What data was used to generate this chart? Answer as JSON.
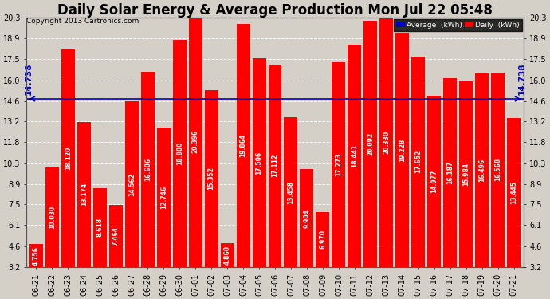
{
  "title": "Daily Solar Energy & Average Production Mon Jul 22 05:48",
  "copyright": "Copyright 2013 Cartronics.com",
  "categories": [
    "06-21",
    "06-22",
    "06-23",
    "06-24",
    "06-25",
    "06-26",
    "06-27",
    "06-28",
    "06-29",
    "06-30",
    "07-01",
    "07-02",
    "07-03",
    "07-04",
    "07-05",
    "07-06",
    "07-07",
    "07-08",
    "07-09",
    "07-10",
    "07-11",
    "07-12",
    "07-13",
    "07-14",
    "07-15",
    "07-16",
    "07-17",
    "07-18",
    "07-19",
    "07-20",
    "07-21"
  ],
  "values": [
    4.756,
    10.03,
    18.12,
    13.174,
    8.618,
    7.464,
    14.562,
    16.606,
    12.746,
    18.8,
    20.396,
    15.352,
    4.86,
    19.864,
    17.506,
    17.112,
    13.458,
    9.904,
    6.97,
    17.273,
    18.441,
    20.092,
    20.33,
    19.228,
    17.652,
    14.977,
    16.187,
    15.984,
    16.496,
    16.568,
    13.445
  ],
  "average": 14.738,
  "bar_color": "#ff0000",
  "avg_line_color": "#0000cc",
  "background_color": "#d4d0c8",
  "plot_bg_color": "#d4d0c8",
  "grid_color": "#ffffff",
  "ylim_min": 3.2,
  "ylim_max": 20.3,
  "yticks": [
    3.2,
    4.6,
    6.1,
    7.5,
    8.9,
    10.3,
    11.8,
    13.2,
    14.6,
    16.0,
    17.5,
    18.9,
    20.3
  ],
  "legend_avg_color": "#0000cc",
  "legend_daily_color": "#ff0000",
  "title_fontsize": 12,
  "bar_text_fontsize": 5.5,
  "avg_label_fontsize": 7.5,
  "axis_tick_fontsize": 7,
  "copyright_fontsize": 6.5
}
